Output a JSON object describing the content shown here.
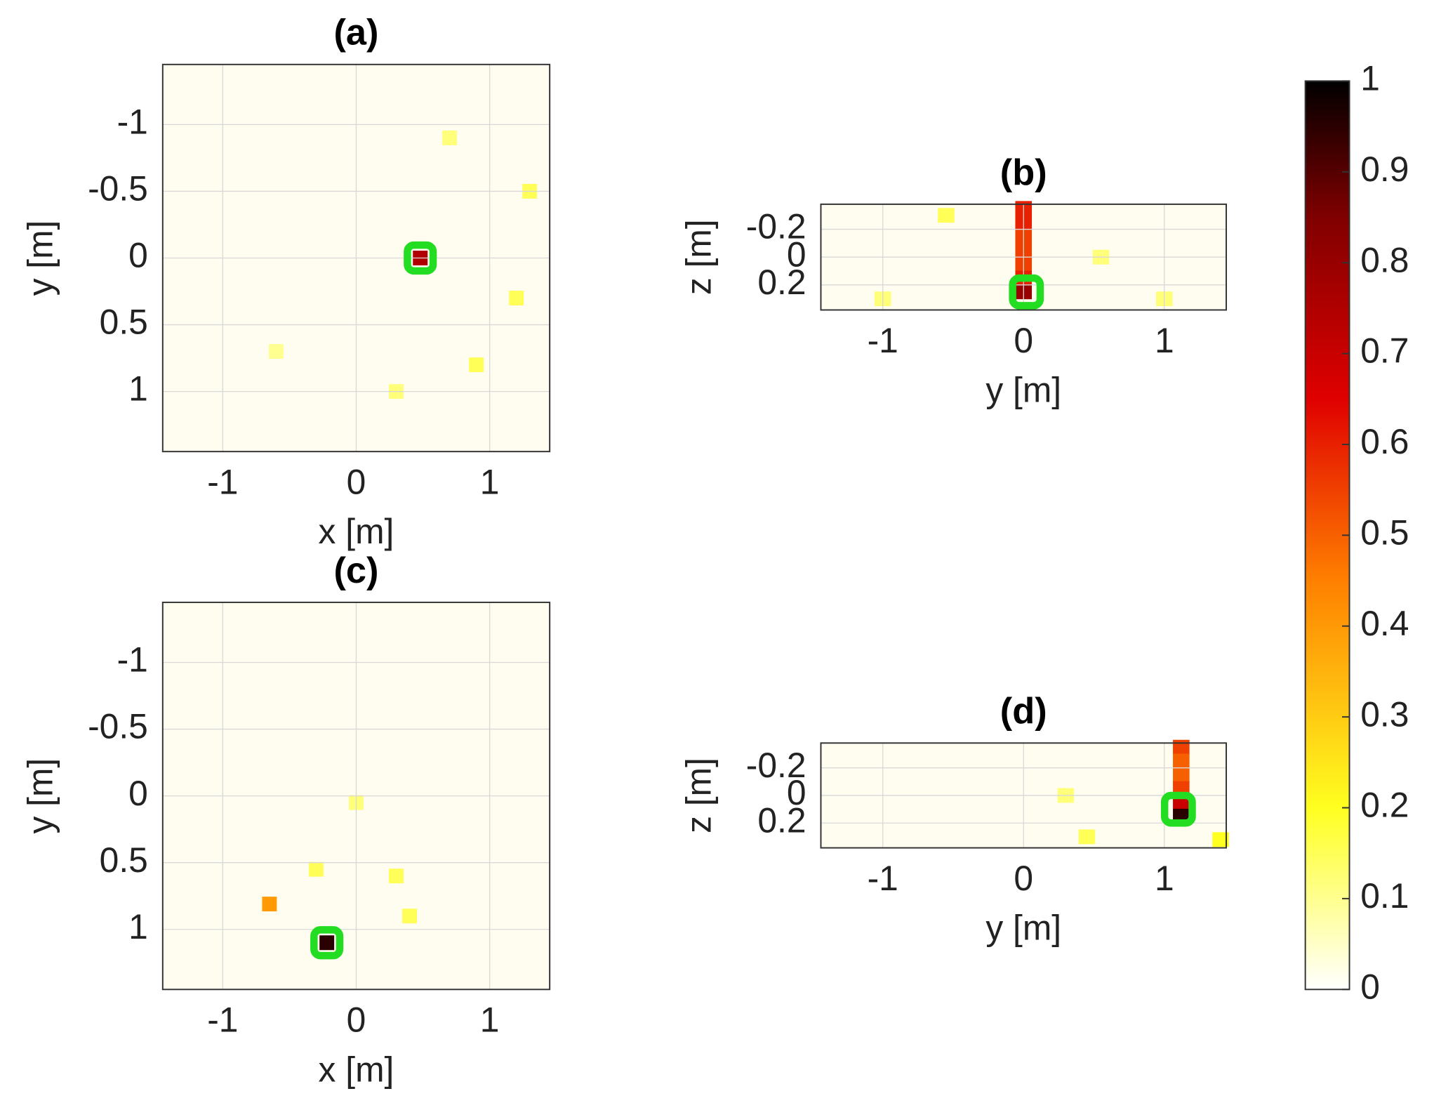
{
  "chart_data": [
    {
      "type": "heatmap",
      "title": "(a)",
      "xlabel": "x [m]",
      "ylabel": "y [m]",
      "xlim": [
        -1.45,
        1.45
      ],
      "ylim": [
        1.45,
        -1.45
      ],
      "xticks": [
        -1,
        0,
        1
      ],
      "yticks": [
        -1,
        -0.5,
        0,
        0.5,
        1
      ],
      "grid": true,
      "cells": {
        "x": [
          0.48,
          0.9,
          1.2,
          0.7,
          -0.6,
          1.3,
          0.3
        ],
        "y": [
          0.0,
          0.8,
          0.3,
          -0.9,
          0.7,
          -0.5,
          1.0
        ],
        "values": [
          0.75,
          0.15,
          0.15,
          0.12,
          0.1,
          0.15,
          0.12
        ]
      },
      "markers": {
        "x": [
          0.48
        ],
        "y": [
          0.0
        ],
        "color": "#22dd22"
      }
    },
    {
      "type": "heatmap",
      "title": "(b)",
      "xlabel": "y [m]",
      "ylabel": "z [m]",
      "xlim": [
        -1.44,
        1.44
      ],
      "ylim": [
        0.38,
        -0.38
      ],
      "xticks": [
        -1,
        0,
        1
      ],
      "yticks": [
        -0.2,
        0,
        0.2
      ],
      "grid": true,
      "cells": {
        "x": [
          0,
          0,
          0,
          0,
          0,
          0,
          0,
          -1.0,
          -0.55,
          0.55,
          1.0
        ],
        "y": [
          -0.35,
          -0.25,
          -0.15,
          -0.05,
          0.05,
          0.15,
          0.25,
          0.3,
          -0.3,
          0.0,
          0.3
        ],
        "values": [
          0.6,
          0.6,
          0.55,
          0.55,
          0.55,
          0.6,
          0.8,
          0.12,
          0.15,
          0.12,
          0.12
        ]
      },
      "markers": {
        "x": [
          0.02
        ],
        "y": [
          0.25
        ],
        "color": "#22dd22"
      }
    },
    {
      "type": "heatmap",
      "title": "(c)",
      "xlabel": "x [m]",
      "ylabel": "y [m]",
      "xlim": [
        -1.45,
        1.45
      ],
      "ylim": [
        1.45,
        -1.45
      ],
      "xticks": [
        -1,
        0,
        1
      ],
      "yticks": [
        -1,
        -0.5,
        0,
        0.5,
        1
      ],
      "grid": true,
      "cells": {
        "x": [
          -0.22,
          -0.65,
          -0.3,
          0.4,
          0.0,
          0.3
        ],
        "y": [
          1.1,
          0.81,
          0.55,
          0.9,
          0.05,
          0.6
        ],
        "values": [
          0.95,
          0.4,
          0.15,
          0.15,
          0.12,
          0.15
        ]
      },
      "markers": {
        "x": [
          -0.22
        ],
        "y": [
          1.1
        ],
        "color": "#22dd22"
      }
    },
    {
      "type": "heatmap",
      "title": "(d)",
      "xlabel": "y [m]",
      "ylabel": "z [m]",
      "xlim": [
        -1.44,
        1.44
      ],
      "ylim": [
        0.38,
        -0.38
      ],
      "xticks": [
        -1,
        0,
        1
      ],
      "yticks": [
        -0.2,
        0,
        0.2
      ],
      "grid": true,
      "cells": {
        "x": [
          1.12,
          1.12,
          1.12,
          1.12,
          1.12,
          1.12,
          0.45,
          0.3,
          1.4
        ],
        "y": [
          -0.35,
          -0.25,
          -0.15,
          -0.05,
          0.05,
          0.15,
          0.3,
          0.0,
          0.32
        ],
        "values": [
          0.55,
          0.5,
          0.5,
          0.55,
          0.7,
          0.95,
          0.15,
          0.12,
          0.2
        ]
      },
      "markers": {
        "x": [
          1.1
        ],
        "y": [
          0.1
        ],
        "color": "#22dd22"
      }
    }
  ],
  "colorbar": {
    "lim": [
      0,
      1
    ],
    "ticks": [
      0,
      0.1,
      0.2,
      0.3,
      0.4,
      0.5,
      0.6,
      0.7,
      0.8,
      0.9,
      1
    ]
  }
}
